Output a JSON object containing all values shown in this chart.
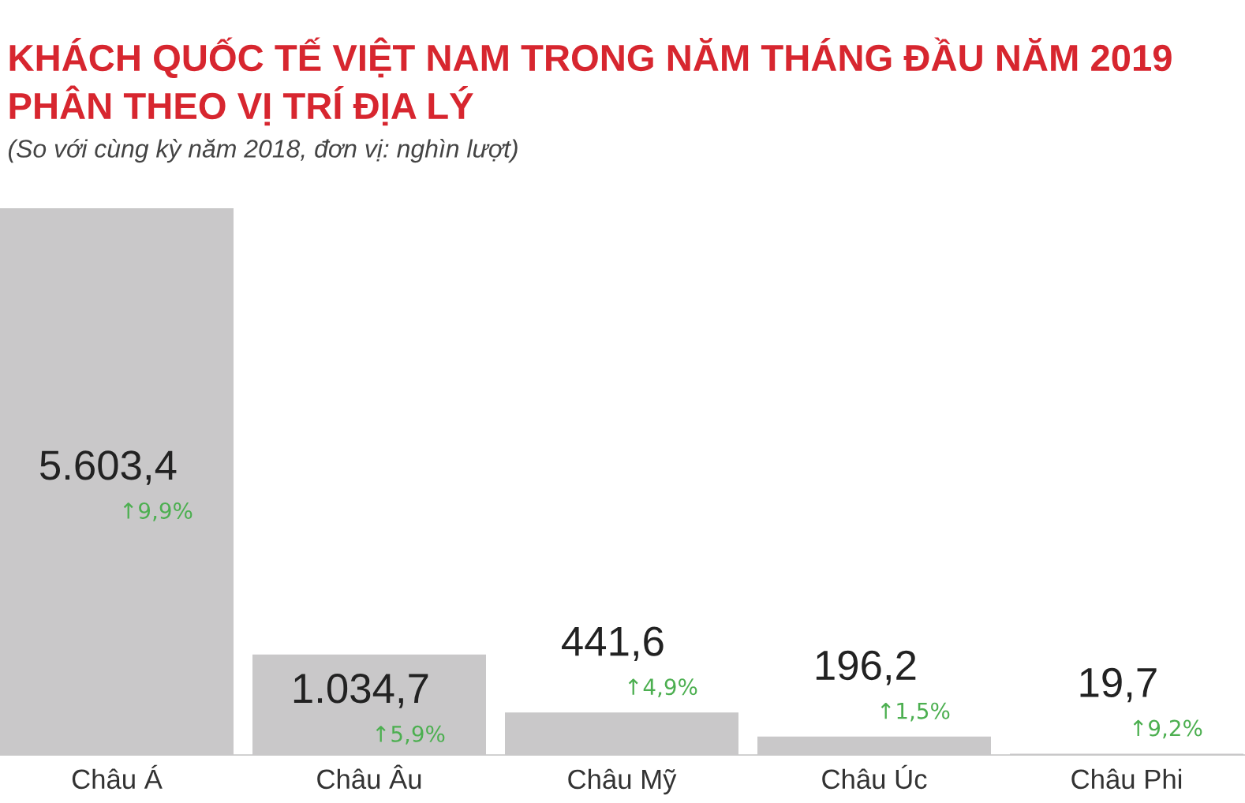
{
  "chart_data": {
    "type": "bar",
    "title": "KHÁCH QUỐC TẾ VIỆT NAM TRONG NĂM THÁNG ĐẦU NĂM 2019\nPHÂN THEO VỊ TRÍ ĐỊA LÝ",
    "subtitle": "(So với cùng kỳ năm 2018, đơn vị: nghìn lượt)",
    "categories": [
      "Châu Á",
      "Châu Âu",
      "Châu Mỹ",
      "Châu Úc",
      "Châu Phi"
    ],
    "values": [
      5603.4,
      1034.7,
      441.6,
      196.2,
      19.7
    ],
    "color": "#c9c8c9",
    "value_labels": [
      "5.603,4",
      "1.034,7",
      "441,6",
      "196,2",
      "19,7"
    ],
    "annotations": [
      "↑9,9%",
      "↑5,9%",
      "↑4,9%",
      "↑1,5%",
      "↑9,2%"
    ],
    "grid": false,
    "legend": false
  }
}
